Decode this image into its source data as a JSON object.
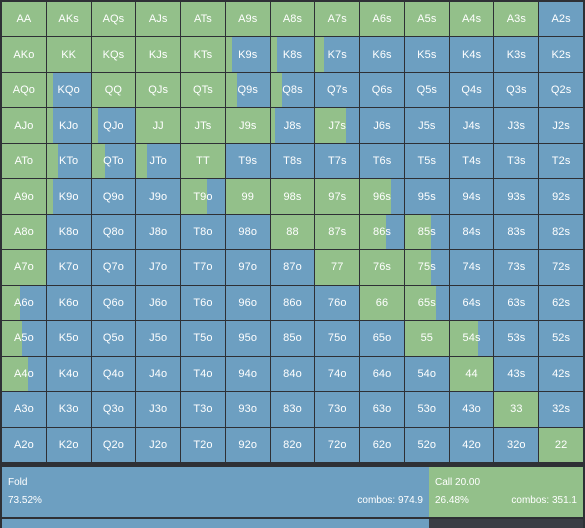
{
  "ranks": [
    "A",
    "K",
    "Q",
    "J",
    "T",
    "9",
    "8",
    "7",
    "6",
    "5",
    "4",
    "3",
    "2"
  ],
  "colors": {
    "call": "#93c08a",
    "fold": "#6d9fc1",
    "background": "#2e3035"
  },
  "call_fraction": [
    [
      1,
      1,
      1,
      1,
      1,
      1,
      1,
      1,
      1,
      1,
      1,
      1,
      0
    ],
    [
      1,
      1,
      1,
      1,
      1,
      0.15,
      0.15,
      0.2,
      0,
      0,
      0,
      0,
      0
    ],
    [
      1,
      0.15,
      1,
      1,
      1,
      0.25,
      0.25,
      0,
      0,
      0,
      0,
      0,
      0
    ],
    [
      1,
      0.15,
      0.15,
      1,
      1,
      1,
      0.1,
      0.7,
      0,
      0,
      0,
      0,
      0
    ],
    [
      1,
      0.25,
      0.3,
      0.25,
      1,
      0,
      0,
      0,
      0,
      0,
      0,
      0,
      0
    ],
    [
      1,
      0.15,
      0,
      0,
      0.6,
      1,
      1,
      1,
      0.7,
      0,
      0,
      0,
      0
    ],
    [
      1,
      0,
      0,
      0,
      0,
      0,
      1,
      1,
      0.6,
      0.6,
      0,
      0,
      0
    ],
    [
      1,
      0,
      0,
      0,
      0,
      0,
      0,
      1,
      1,
      0.6,
      0,
      0,
      0
    ],
    [
      0.4,
      0,
      0,
      0,
      0,
      0,
      0,
      0,
      1,
      0.7,
      0,
      0,
      0
    ],
    [
      0.45,
      0,
      0,
      0,
      0,
      0,
      0,
      0,
      0,
      1,
      0.65,
      0,
      0
    ],
    [
      0.6,
      0,
      0,
      0,
      0,
      0,
      0,
      0,
      0,
      0,
      1,
      0,
      0
    ],
    [
      0,
      0,
      0,
      0,
      0,
      0,
      0,
      0,
      0,
      0,
      0,
      1,
      0
    ],
    [
      0,
      0,
      0,
      0,
      0,
      0,
      0,
      0,
      0,
      0,
      0,
      0,
      1
    ]
  ],
  "summary": {
    "fold": {
      "label": "Fold",
      "percent": "73.52%",
      "combos": "combos: 974.9",
      "fraction": 0.7352
    },
    "call": {
      "label": "Call 20.00",
      "percent": "26.48%",
      "combos": "combos: 351.1",
      "fraction": 0.2648
    }
  },
  "bottom_bar": {
    "fraction": 0.735
  }
}
